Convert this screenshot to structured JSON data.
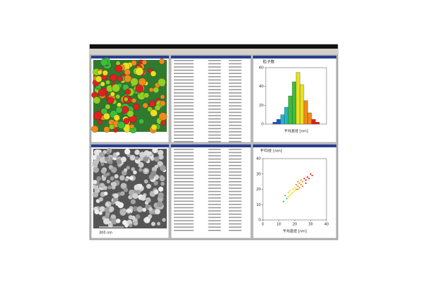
{
  "histogram": {
    "title": "粒子数",
    "xlabel": "平均直径 [nm]",
    "counts": [
      2,
      5,
      10,
      18,
      30,
      45,
      55,
      42,
      25,
      12,
      5,
      2
    ],
    "ylim": [
      0,
      60
    ],
    "yticks": [
      0,
      20,
      40,
      60
    ]
  },
  "scatter": {
    "title": "平均径 [nm]",
    "xlabel": "平均直径 [nm]",
    "x": [
      13,
      14,
      15,
      16,
      17,
      17,
      18,
      19,
      19,
      20,
      20,
      21,
      21,
      22,
      22,
      23,
      23,
      24,
      24,
      25,
      25,
      26,
      27,
      27,
      28,
      29,
      30,
      31,
      16,
      22
    ],
    "y": [
      12,
      16,
      14,
      15,
      19,
      16,
      17,
      20,
      18,
      21,
      19,
      20,
      23,
      22,
      20,
      24,
      21,
      23,
      26,
      25,
      22,
      27,
      26,
      24,
      28,
      27,
      30,
      29,
      18,
      25
    ],
    "xlim": [
      0,
      40
    ],
    "ylim": [
      0,
      40
    ],
    "xticks": [
      0,
      10,
      20,
      30,
      40
    ],
    "yticks": [
      0,
      10,
      20,
      30,
      40
    ]
  },
  "palette": [
    "#1f4fd8",
    "#22b5c9",
    "#3cbf3c",
    "#e8e020",
    "#f08a1a",
    "#e02020"
  ],
  "scale_bar": "300 nm"
}
